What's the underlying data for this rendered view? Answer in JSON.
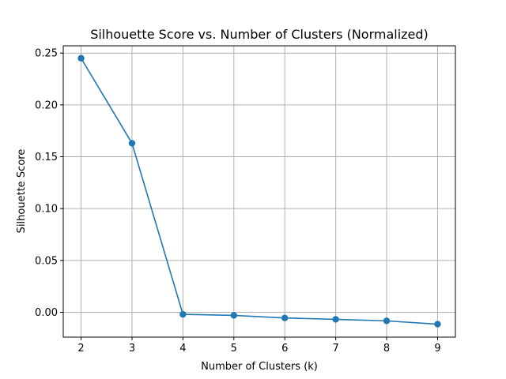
{
  "chart_data": {
    "type": "line",
    "title": "Silhouette Score vs. Number of Clusters (Normalized)",
    "xlabel": "Number of Clusters (k)",
    "ylabel": "Silhouette Score",
    "x": [
      2,
      3,
      4,
      5,
      6,
      7,
      8,
      9
    ],
    "series": [
      {
        "values": [
          0.245,
          0.163,
          -0.002,
          -0.003,
          -0.0055,
          -0.0068,
          -0.0083,
          -0.0115
        ],
        "color": "#1f77b4",
        "marker": "circle"
      }
    ],
    "xticks": [
      "2",
      "3",
      "4",
      "5",
      "6",
      "7",
      "8",
      "9"
    ],
    "yticks": [
      "0.00",
      "0.05",
      "0.10",
      "0.15",
      "0.20",
      "0.25"
    ],
    "xlim": [
      1.65,
      9.35
    ],
    "ylim": [
      -0.024,
      0.257
    ],
    "grid": true
  }
}
